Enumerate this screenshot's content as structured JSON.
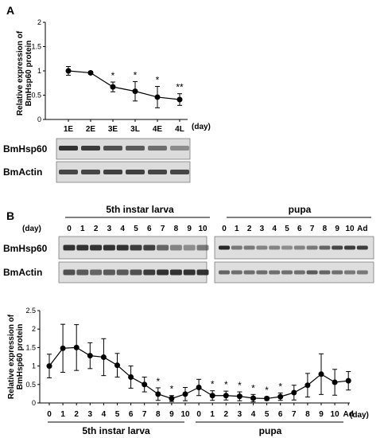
{
  "panel_a": {
    "letter": "A",
    "ylabel_line1": "Relative expression of",
    "ylabel_line2": "BmHsp60 protein",
    "unit": "(day)",
    "blot_labels": [
      "BmHsp60",
      "BmActin"
    ]
  },
  "panel_b": {
    "letter": "B",
    "group_labels": [
      "5th instar larva",
      "pupa"
    ],
    "day_label": "(day)",
    "blot_days_larva": [
      "0",
      "1",
      "2",
      "3",
      "4",
      "5",
      "6",
      "7",
      "8",
      "9",
      "10"
    ],
    "blot_days_pupa": [
      "0",
      "1",
      "2",
      "3",
      "4",
      "5",
      "6",
      "7",
      "8",
      "9",
      "10",
      "Ad"
    ],
    "blot_labels": [
      "BmHsp60",
      "BmActin"
    ],
    "ylabel_line1": "Relative expression of",
    "ylabel_line2": "BmHsp60 protein",
    "unit": "(day)",
    "bottom_labels": [
      "5th instar larva",
      "pupa"
    ]
  },
  "chart_data": [
    {
      "type": "line",
      "categories": [
        "1E",
        "2E",
        "3E",
        "3L",
        "4E",
        "4L"
      ],
      "values": [
        1.0,
        0.96,
        0.67,
        0.58,
        0.46,
        0.41
      ],
      "errors": [
        0.09,
        0.03,
        0.1,
        0.2,
        0.22,
        0.12
      ],
      "significance": [
        "",
        "",
        "*",
        "*",
        "*",
        "**"
      ],
      "ylim": [
        0,
        2
      ],
      "yticks": [
        "0",
        "0.5",
        "1",
        "1.5",
        "2"
      ]
    },
    {
      "type": "line",
      "categories": [
        "0",
        "1",
        "2",
        "3",
        "4",
        "5",
        "6",
        "7",
        "8",
        "9",
        "10",
        "0",
        "1",
        "2",
        "3",
        "4",
        "5",
        "6",
        "7",
        "8",
        "9",
        "10",
        "Ad"
      ],
      "values": [
        1.0,
        1.48,
        1.5,
        1.28,
        1.24,
        1.02,
        0.7,
        0.5,
        0.24,
        0.12,
        0.24,
        0.42,
        0.2,
        0.2,
        0.18,
        0.13,
        0.12,
        0.17,
        0.28,
        0.48,
        0.78,
        0.56,
        0.6
      ],
      "errors": [
        0.32,
        0.65,
        0.62,
        0.35,
        0.5,
        0.32,
        0.3,
        0.2,
        0.17,
        0.08,
        0.18,
        0.22,
        0.13,
        0.12,
        0.12,
        0.1,
        0.05,
        0.1,
        0.2,
        0.32,
        0.55,
        0.35,
        0.25
      ],
      "significance": [
        "",
        "",
        "",
        "",
        "",
        "",
        "",
        "",
        "*",
        "*",
        "",
        "",
        "*",
        "*",
        "*",
        "*",
        "*",
        "*",
        "",
        "",
        "",
        "",
        ""
      ],
      "ylim": [
        0,
        2.5
      ],
      "yticks": [
        "0",
        "0.5",
        "1",
        "1.5",
        "2",
        "2.5"
      ]
    }
  ]
}
